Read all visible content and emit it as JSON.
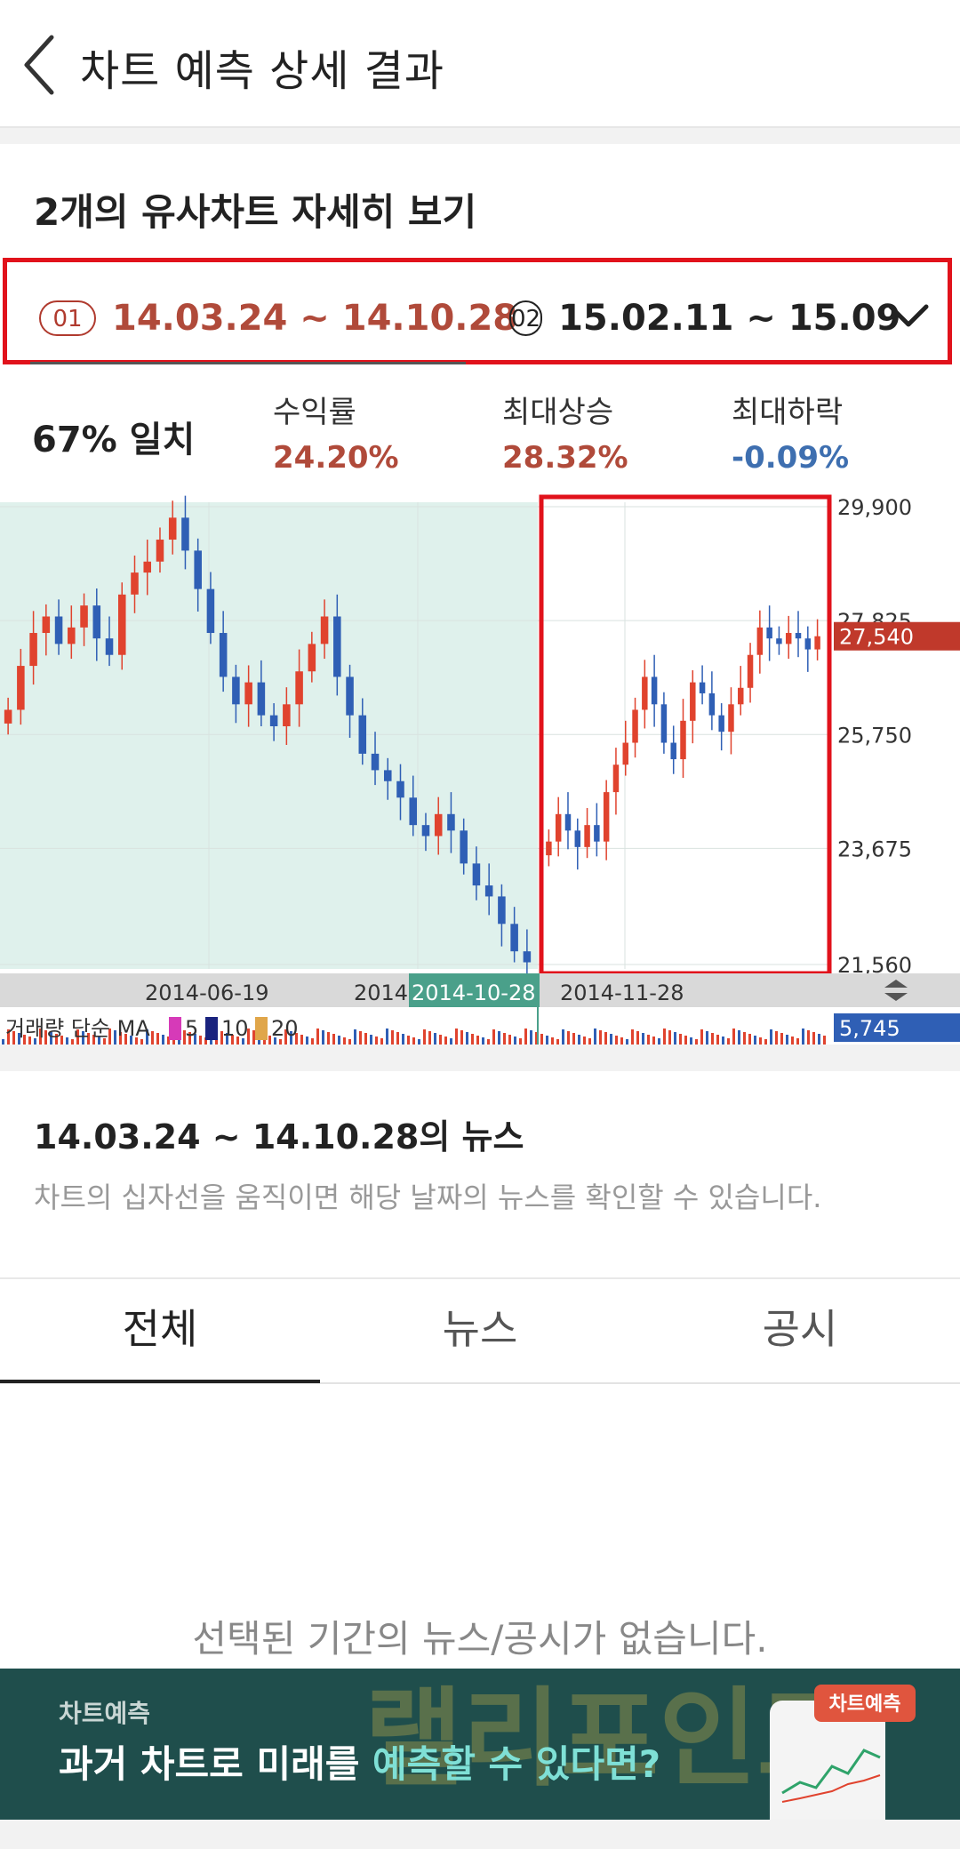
{
  "header": {
    "title": "차트 예측 상세 결과"
  },
  "section": {
    "title": "2개의 유사차트 자세히 보기"
  },
  "periods": [
    {
      "badge": "01",
      "range": "14.03.24 ~ 14.10.28"
    },
    {
      "badge": "02",
      "range": "15.02.11 ~ 15.09"
    }
  ],
  "stats": {
    "match": "67% 일치",
    "items": [
      {
        "label": "수익률",
        "value": "24.20%"
      },
      {
        "label": "최대상승",
        "value": "28.32%"
      },
      {
        "label": "최대하락",
        "value": "-0.09%"
      }
    ]
  },
  "chart_data": {
    "type": "candlestick",
    "y_ticks": [
      "29,900",
      "27,825",
      "25,750",
      "23,675",
      "21,560"
    ],
    "ylim": [
      21560,
      29900
    ],
    "current_price": "27,540",
    "x_ticks": [
      "2014-06-19",
      "2014",
      "2014-10-28",
      "2014-11-28"
    ],
    "volume_label": "거래량 단순 MA",
    "ma_periods": [
      "5",
      "10",
      "20"
    ],
    "volume_value": "5,745",
    "series": [
      {
        "period": "2014-03-24 ~ 2014-10-28",
        "close": [
          26200,
          27000,
          27600,
          27900,
          27400,
          27700,
          28100,
          27500,
          27200,
          28300,
          28700,
          28900,
          29300,
          29700,
          29100,
          28400,
          27600,
          26800,
          26300,
          26700,
          26100,
          25900,
          26300,
          26900,
          27400,
          27900,
          26800,
          26100,
          25400,
          25100,
          24900,
          24600,
          24100,
          23900,
          24300,
          24000,
          23400,
          23000,
          22800,
          22300,
          21800,
          21600
        ]
      },
      {
        "period": "2014-10-28 ~",
        "close": [
          23800,
          24300,
          24000,
          23700,
          24100,
          23800,
          24700,
          25200,
          25600,
          26200,
          26800,
          26300,
          25600,
          25300,
          26000,
          26700,
          26500,
          26100,
          25800,
          26300,
          26600,
          27200,
          27700,
          27500,
          27400,
          27600,
          27500,
          27300,
          27540
        ]
      }
    ]
  },
  "news": {
    "title": "14.03.24 ~ 14.10.28의 뉴스",
    "desc": "차트의 십자선을 움직이면 해당 날짜의 뉴스를 확인할 수 있습니다."
  },
  "tabs": [
    "전체",
    "뉴스",
    "공시"
  ],
  "empty_text": "선택된 기간의 뉴스/공시가 없습니다.",
  "banner": {
    "tag": "차트예측",
    "headline_prefix": "과거 차트로 미래를 ",
    "headline_highlight": "예측할 수 있다면?",
    "watermark": "랠리포인트",
    "chip": "차트예측"
  },
  "colors": {
    "up": "#e0432e",
    "down": "#2f5fb5",
    "accent_red": "#b04a3a",
    "accent_blue": "#3e6fb0",
    "highlight_box": "#e1121b"
  }
}
